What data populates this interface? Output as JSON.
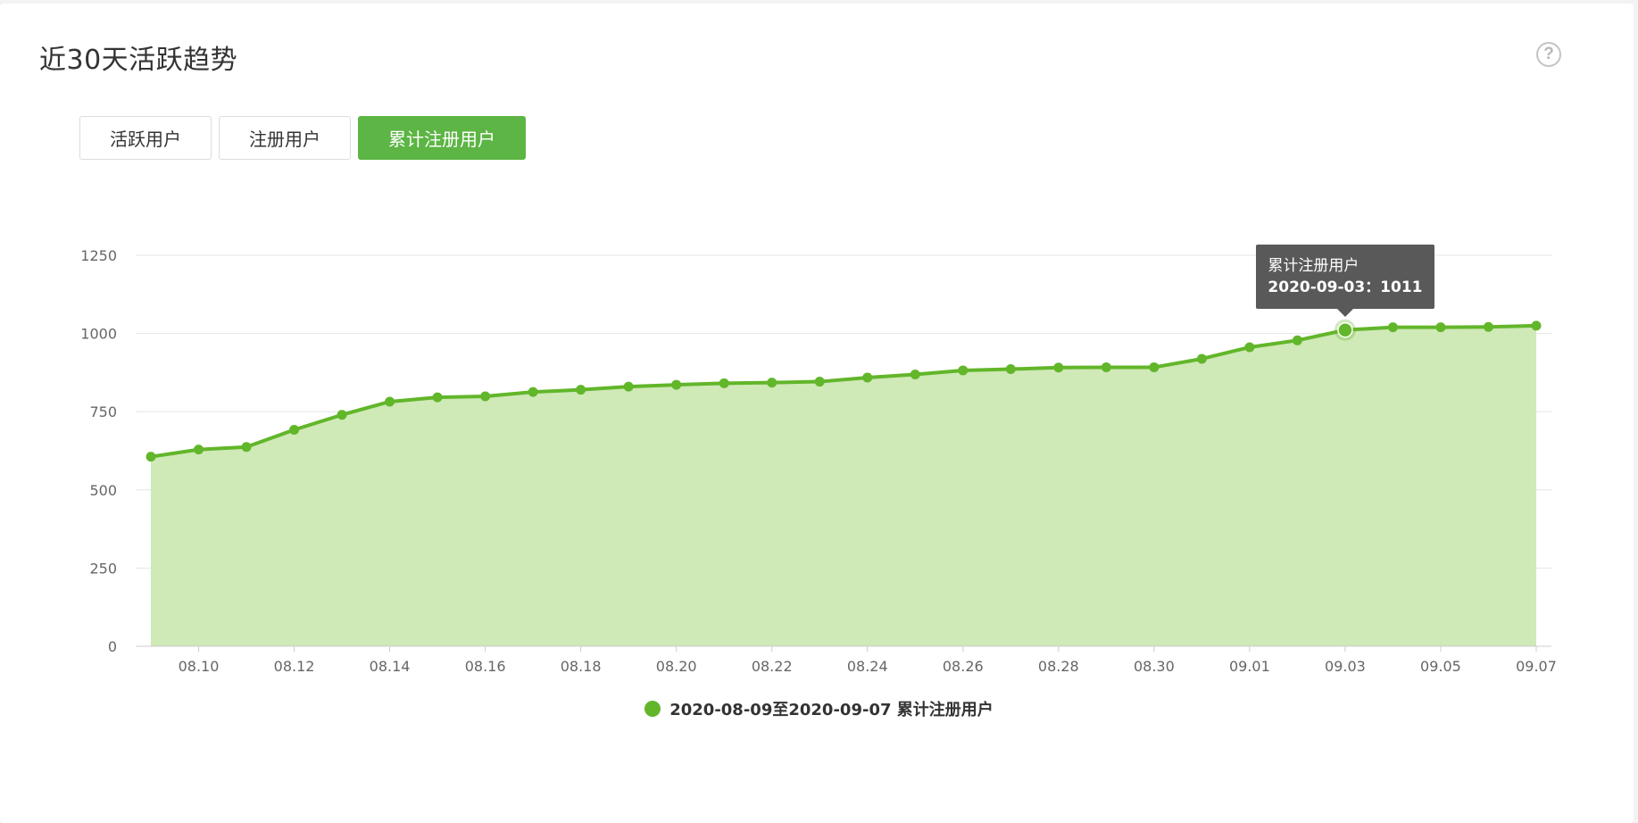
{
  "title": "近30天活跃趋势",
  "help_icon": "question-circle-icon",
  "tabs": [
    {
      "label": "活跃用户",
      "active": false
    },
    {
      "label": "注册用户",
      "active": false
    },
    {
      "label": "累计注册用户",
      "active": true
    }
  ],
  "colors": {
    "line": "#62b62a",
    "area": "#cfe9b7",
    "active_tab": "#5cb544"
  },
  "tooltip": {
    "series": "累计注册用户",
    "date": "2020-09-03",
    "value_text": "：1011"
  },
  "chart_data": {
    "type": "area",
    "x": [
      "2020-08-09",
      "2020-08-10",
      "2020-08-11",
      "2020-08-12",
      "2020-08-13",
      "2020-08-14",
      "2020-08-15",
      "2020-08-16",
      "2020-08-17",
      "2020-08-18",
      "2020-08-19",
      "2020-08-20",
      "2020-08-21",
      "2020-08-22",
      "2020-08-23",
      "2020-08-24",
      "2020-08-25",
      "2020-08-26",
      "2020-08-27",
      "2020-08-28",
      "2020-08-29",
      "2020-08-30",
      "2020-08-31",
      "2020-09-01",
      "2020-09-02",
      "2020-09-03",
      "2020-09-04",
      "2020-09-05",
      "2020-09-06",
      "2020-09-07"
    ],
    "tick_labels": [
      "08.10",
      "08.12",
      "08.14",
      "08.16",
      "08.18",
      "08.20",
      "08.22",
      "08.24",
      "08.26",
      "08.28",
      "08.30",
      "09.01",
      "09.03",
      "09.05",
      "09.07"
    ],
    "series": [
      {
        "name": "2020-08-09至2020-09-07 累计注册用户",
        "values": [
          606,
          629,
          637,
          692,
          740,
          782,
          796,
          799,
          813,
          820,
          830,
          836,
          841,
          843,
          846,
          859,
          869,
          882,
          886,
          891,
          892,
          892,
          919,
          956,
          978,
          1011,
          1020,
          1020,
          1021,
          1025
        ]
      }
    ],
    "y_ticks": [
      0,
      250,
      500,
      750,
      1000,
      1250
    ],
    "ylim": [
      0,
      1250
    ],
    "grid": true,
    "legend_position": "bottom-center",
    "highlight_index": 25
  }
}
